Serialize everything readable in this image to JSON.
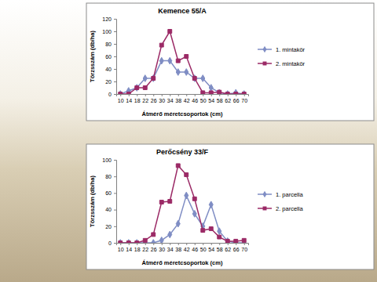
{
  "chart_data": [
    {
      "type": "line",
      "title": "Kemence 55/A",
      "x_label": "Átmérő méretcsoportok (cm)",
      "y_label": "Törzsszám (db/ha)",
      "categories": [
        "10",
        "14",
        "18",
        "22",
        "26",
        "30",
        "34",
        "38",
        "42",
        "46",
        "50",
        "54",
        "58",
        "62",
        "66",
        "70"
      ],
      "series": [
        {
          "name": "1. mintakör",
          "color": "#7f8dc4",
          "marker": "diamond",
          "line_style": "solid",
          "values": [
            0,
            5,
            10,
            25,
            25,
            53,
            53,
            35,
            35,
            25,
            25,
            10,
            2,
            0,
            2,
            0
          ]
        },
        {
          "name": "2. mintakör",
          "color": "#9b2a66",
          "marker": "square",
          "line_style": "solid",
          "values": [
            0,
            0,
            10,
            10,
            25,
            78,
            100,
            53,
            60,
            25,
            2,
            2,
            3,
            0,
            0,
            0
          ]
        }
      ],
      "ylim": [
        0,
        120
      ],
      "yticks": [
        0,
        20,
        40,
        60,
        80,
        100,
        120
      ],
      "grid": false,
      "legend": "right"
    },
    {
      "type": "line",
      "title": "Perőcsény 33/F",
      "x_label": "Átmérő méretcsoportok (cm)",
      "y_label": "Törzsszám (db/ha)",
      "categories": [
        "10",
        "14",
        "18",
        "22",
        "26",
        "30",
        "34",
        "38",
        "42",
        "46",
        "50",
        "54",
        "58",
        "62",
        "66",
        "70"
      ],
      "series": [
        {
          "name": "1. parcella",
          "color": "#7f8dc4",
          "marker": "diamond",
          "line_style": "solid",
          "values": [
            0,
            0,
            0,
            0,
            0,
            3,
            10,
            23,
            57,
            35,
            20,
            46,
            14,
            2,
            0,
            0
          ]
        },
        {
          "name": "2. parcella",
          "color": "#9b2a66",
          "marker": "square",
          "line_style": "solid",
          "values": [
            0,
            0,
            0,
            3,
            10,
            49,
            50,
            93,
            82,
            53,
            15,
            17,
            7,
            2,
            2,
            3
          ]
        }
      ],
      "ylim": [
        0,
        100
      ],
      "yticks": [
        0,
        20,
        40,
        60,
        80,
        100
      ],
      "grid": false,
      "legend": "right"
    }
  ]
}
